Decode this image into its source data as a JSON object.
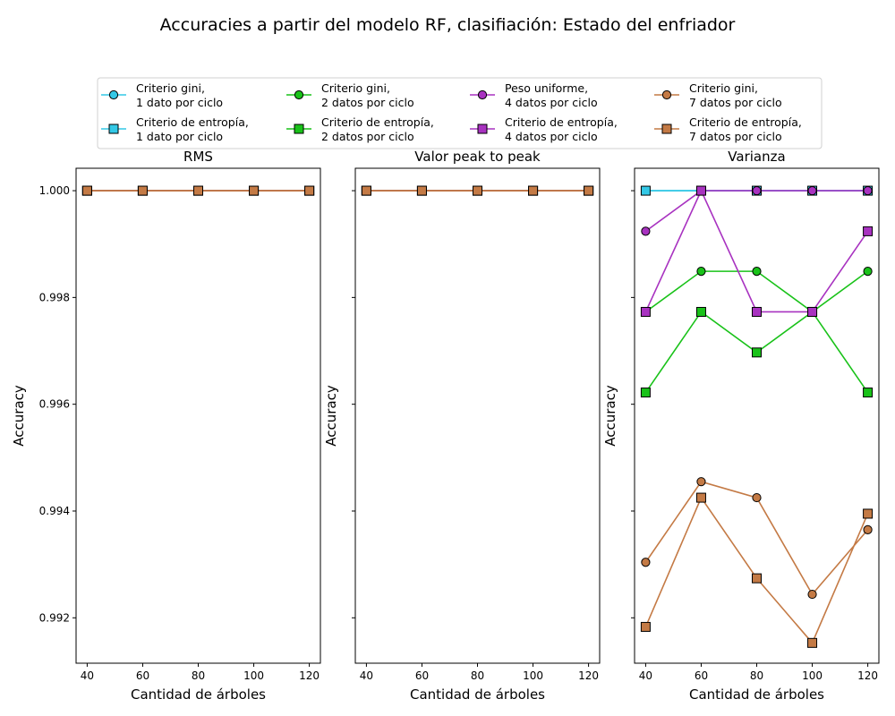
{
  "figure": {
    "title": "Accuracies a partir del modelo RF, clasifiación: Estado del enfriador"
  },
  "legend": {
    "placement": "top-center",
    "columns": 4,
    "entries": [
      {
        "series": 0,
        "lines": [
          "Criterio gini,",
          "1 dato por ciclo"
        ]
      },
      {
        "series": 1,
        "lines": [
          "Criterio de entropía,",
          "1 dato por ciclo"
        ]
      },
      {
        "series": 2,
        "lines": [
          "Criterio gini,",
          " 2 datos por ciclo"
        ]
      },
      {
        "series": 3,
        "lines": [
          "Criterio de entropía,",
          "2 datos por ciclo"
        ]
      },
      {
        "series": 4,
        "lines": [
          "Peso uniforme,",
          "4 datos por ciclo"
        ]
      },
      {
        "series": 5,
        "lines": [
          "Criterio de entropía,",
          "4 datos por ciclo"
        ]
      },
      {
        "series": 6,
        "lines": [
          "Criterio gini,",
          "7 datos por ciclo"
        ]
      },
      {
        "series": 7,
        "lines": [
          "Criterio de entropía,",
          "7 datos por ciclo"
        ]
      }
    ]
  },
  "chart_data": [
    {
      "type": "line",
      "title": "RMS",
      "xlabel": "Cantidad de árboles",
      "ylabel": "Accuracy",
      "xlim": [
        36,
        124
      ],
      "ylim": [
        0.99115,
        1.00042
      ],
      "xticks": [
        "40",
        "60",
        "80",
        "100",
        "120"
      ],
      "yticks": [
        "0.992",
        "0.994",
        "0.996",
        "0.998",
        "1.000"
      ],
      "show_ytick_labels": true,
      "grid": false,
      "x": [
        40,
        60,
        80,
        100,
        120
      ],
      "series": [
        {
          "name": "Criterio gini, 1 dato por ciclo",
          "color": "#33c8e6",
          "marker": "circle",
          "values": [
            1.0,
            1.0,
            1.0,
            1.0,
            1.0
          ]
        },
        {
          "name": "Criterio de entropía, 1 dato por ciclo",
          "color": "#33c8e6",
          "marker": "square",
          "values": [
            1.0,
            1.0,
            1.0,
            1.0,
            1.0
          ]
        },
        {
          "name": "Criterio gini, 2 datos por ciclo",
          "color": "#19c219",
          "marker": "circle",
          "values": [
            1.0,
            1.0,
            1.0,
            1.0,
            1.0
          ]
        },
        {
          "name": "Criterio de entropía, 2 datos por ciclo",
          "color": "#19c219",
          "marker": "square",
          "values": [
            1.0,
            1.0,
            1.0,
            1.0,
            1.0
          ]
        },
        {
          "name": "Peso uniforme, 4 datos por ciclo",
          "color": "#a832c0",
          "marker": "circle",
          "values": [
            1.0,
            1.0,
            1.0,
            1.0,
            1.0
          ]
        },
        {
          "name": "Criterio de entropía, 4 datos por ciclo",
          "color": "#a832c0",
          "marker": "square",
          "values": [
            1.0,
            1.0,
            1.0,
            1.0,
            1.0
          ]
        },
        {
          "name": "Criterio gini, 7 datos por ciclo",
          "color": "#c47a45",
          "marker": "circle",
          "values": [
            1.0,
            1.0,
            1.0,
            1.0,
            1.0
          ]
        },
        {
          "name": "Criterio de entropía, 7 datos por ciclo",
          "color": "#c47a45",
          "marker": "square",
          "values": [
            1.0,
            1.0,
            1.0,
            1.0,
            1.0
          ]
        }
      ]
    },
    {
      "type": "line",
      "title": "Valor peak to peak",
      "xlabel": "Cantidad de árboles",
      "ylabel": "Accuracy",
      "xlim": [
        36,
        124
      ],
      "ylim": [
        0.99115,
        1.00042
      ],
      "xticks": [
        "40",
        "60",
        "80",
        "100",
        "120"
      ],
      "yticks": [
        "0.992",
        "0.994",
        "0.996",
        "0.998",
        "1.000"
      ],
      "show_ytick_labels": false,
      "grid": false,
      "x": [
        40,
        60,
        80,
        100,
        120
      ],
      "series": [
        {
          "name": "Criterio gini, 1 dato por ciclo",
          "color": "#33c8e6",
          "marker": "circle",
          "values": [
            1.0,
            1.0,
            1.0,
            1.0,
            1.0
          ]
        },
        {
          "name": "Criterio de entropía, 1 dato por ciclo",
          "color": "#33c8e6",
          "marker": "square",
          "values": [
            1.0,
            1.0,
            1.0,
            1.0,
            1.0
          ]
        },
        {
          "name": "Criterio gini, 2 datos por ciclo",
          "color": "#19c219",
          "marker": "circle",
          "values": [
            1.0,
            1.0,
            1.0,
            1.0,
            1.0
          ]
        },
        {
          "name": "Criterio de entropía, 2 datos por ciclo",
          "color": "#19c219",
          "marker": "square",
          "values": [
            1.0,
            1.0,
            1.0,
            1.0,
            1.0
          ]
        },
        {
          "name": "Peso uniforme, 4 datos por ciclo",
          "color": "#a832c0",
          "marker": "circle",
          "values": [
            1.0,
            1.0,
            1.0,
            1.0,
            1.0
          ]
        },
        {
          "name": "Criterio de entropía, 4 datos por ciclo",
          "color": "#a832c0",
          "marker": "square",
          "values": [
            1.0,
            1.0,
            1.0,
            1.0,
            1.0
          ]
        },
        {
          "name": "Criterio gini, 7 datos por ciclo",
          "color": "#c47a45",
          "marker": "circle",
          "values": [
            1.0,
            1.0,
            1.0,
            1.0,
            1.0
          ]
        },
        {
          "name": "Criterio de entropía, 7 datos por ciclo",
          "color": "#c47a45",
          "marker": "square",
          "values": [
            1.0,
            1.0,
            1.0,
            1.0,
            1.0
          ]
        }
      ]
    },
    {
      "type": "line",
      "title": "Varianza",
      "xlabel": "Cantidad de árboles",
      "ylabel": "Accuracy",
      "xlim": [
        36,
        124
      ],
      "ylim": [
        0.99115,
        1.00042
      ],
      "xticks": [
        "40",
        "60",
        "80",
        "100",
        "120"
      ],
      "yticks": [
        "0.992",
        "0.994",
        "0.996",
        "0.998",
        "1.000"
      ],
      "show_ytick_labels": false,
      "grid": false,
      "x": [
        40,
        60,
        80,
        100,
        120
      ],
      "series": [
        {
          "name": "Criterio gini, 1 dato por ciclo",
          "color": "#33c8e6",
          "marker": "circle",
          "values": [
            1.0,
            1.0,
            1.0,
            1.0,
            1.0
          ]
        },
        {
          "name": "Criterio de entropía, 1 dato por ciclo",
          "color": "#33c8e6",
          "marker": "square",
          "values": [
            1.0,
            1.0,
            1.0,
            1.0,
            1.0
          ]
        },
        {
          "name": "Criterio gini, 2 datos por ciclo",
          "color": "#19c219",
          "marker": "circle",
          "values": [
            0.99773,
            0.99849,
            0.99849,
            0.99773,
            0.99849
          ]
        },
        {
          "name": "Criterio de entropía, 2 datos por ciclo",
          "color": "#19c219",
          "marker": "square",
          "values": [
            0.99622,
            0.99773,
            0.99697,
            0.99773,
            0.99622
          ]
        },
        {
          "name": "Peso uniforme, 4 datos por ciclo",
          "color": "#a832c0",
          "marker": "circle",
          "values": [
            0.99924,
            1.0,
            1.0,
            1.0,
            1.0
          ]
        },
        {
          "name": "Criterio de entropía, 4 datos por ciclo",
          "color": "#a832c0",
          "marker": "square",
          "values": [
            0.99773,
            1.0,
            0.99773,
            0.99773,
            0.99924
          ]
        },
        {
          "name": "Criterio gini, 7 datos por ciclo",
          "color": "#c47a45",
          "marker": "circle",
          "values": [
            0.99304,
            0.99455,
            0.99425,
            0.99244,
            0.99365
          ]
        },
        {
          "name": "Criterio de entropía, 7 datos por ciclo",
          "color": "#c47a45",
          "marker": "square",
          "values": [
            0.99183,
            0.99425,
            0.99274,
            0.99153,
            0.99395
          ]
        }
      ]
    }
  ]
}
